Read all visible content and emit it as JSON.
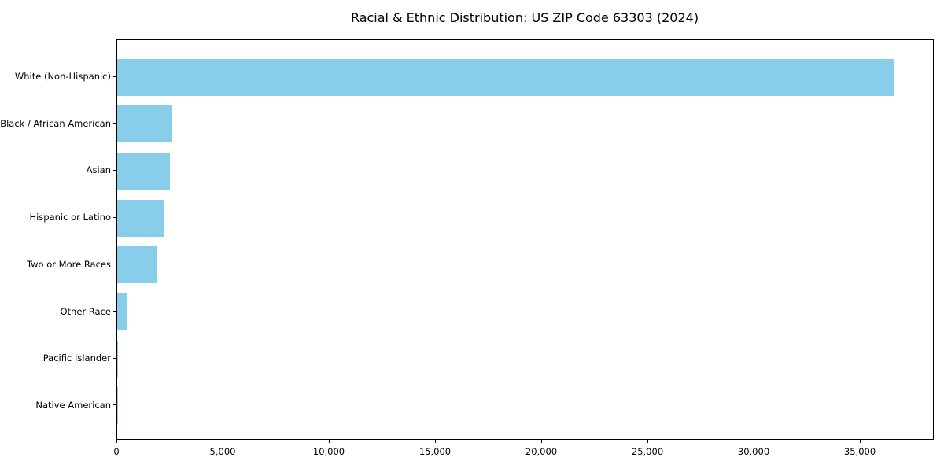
{
  "title": "Racial & Ethnic Distribution: US ZIP Code 63303 (2024)",
  "chart_data": {
    "type": "bar",
    "orientation": "horizontal",
    "title": "Racial & Ethnic Distribution: US ZIP Code 63303 (2024)",
    "xlabel": "",
    "ylabel": "",
    "categories": [
      "White (Non-Hispanic)",
      "Black / African American",
      "Asian",
      "Hispanic or Latino",
      "Two or More Races",
      "Other Race",
      "Pacific Islander",
      "Native American"
    ],
    "values": [
      36600,
      2600,
      2480,
      2220,
      1880,
      430,
      40,
      15
    ],
    "bar_color": "#87CEEB",
    "xlim": [
      0,
      38480
    ],
    "x_ticks": [
      0,
      5000,
      10000,
      15000,
      20000,
      25000,
      30000,
      35000
    ],
    "x_tick_labels": [
      "0",
      "5,000",
      "10,000",
      "15,000",
      "20,000",
      "25,000",
      "30,000",
      "35,000"
    ],
    "grid": false,
    "legend": null,
    "frame": true,
    "background": "#ffffff",
    "text_color": "#000000"
  }
}
